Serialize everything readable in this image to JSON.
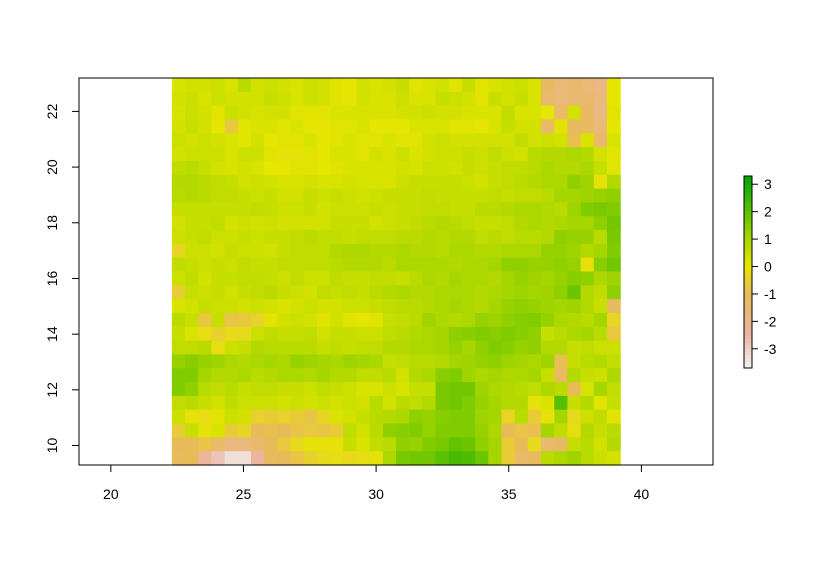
{
  "chart_data": {
    "type": "heatmap",
    "title": "",
    "xlabel": "",
    "ylabel": "",
    "xlim": [
      18.8,
      42.7
    ],
    "ylim": [
      9.3,
      23.2
    ],
    "x_ticks": [
      20,
      25,
      30,
      35,
      40
    ],
    "y_ticks": [
      10,
      12,
      14,
      16,
      18,
      20,
      22
    ],
    "grid": false,
    "raster": {
      "x_min": 22.3,
      "x_max": 39.2,
      "y_min": 9.3,
      "y_max": 23.2,
      "ncols": 34,
      "nrows": 28,
      "row_order": "top-to-bottom",
      "values": [
        [
          0.2,
          0.3,
          0.3,
          0.4,
          0.2,
          0.7,
          0.3,
          0.4,
          0.3,
          0.2,
          0.4,
          0.3,
          0.1,
          0.0,
          0.3,
          0.2,
          0.3,
          0.5,
          0.1,
          0.2,
          0.3,
          0.1,
          0.5,
          0.1,
          0.2,
          0.3,
          0.4,
          0.2,
          -1.2,
          -1.6,
          -1.4,
          -1.6,
          -1.9,
          0.0
        ],
        [
          0.3,
          0.4,
          0.2,
          0.4,
          0.3,
          0.3,
          0.3,
          0.5,
          0.4,
          0.2,
          0.4,
          0.3,
          0.1,
          0.0,
          0.3,
          0.2,
          0.2,
          0.4,
          0.2,
          0.2,
          0.5,
          0.4,
          0.3,
          0.1,
          0.5,
          0.3,
          0.5,
          0.2,
          -1.4,
          -1.6,
          -1.5,
          -1.4,
          -1.7,
          0.0
        ],
        [
          0.2,
          0.4,
          0.3,
          0.1,
          0.4,
          0.3,
          0.2,
          0.3,
          0.3,
          0.1,
          0.1,
          0.1,
          0.2,
          0.2,
          0.2,
          0.2,
          0.2,
          0.3,
          0.3,
          0.4,
          0.3,
          0.3,
          0.2,
          0.2,
          0.2,
          0.6,
          0.2,
          0.2,
          0.0,
          -1.3,
          0.3,
          -1.2,
          -1.9,
          0.1
        ],
        [
          0.3,
          0.5,
          0.3,
          0.0,
          -0.7,
          0.1,
          0.2,
          0.2,
          0.1,
          0.2,
          0.0,
          0.0,
          0.1,
          0.1,
          0.2,
          0.0,
          0.0,
          0.0,
          0.2,
          0.2,
          0.2,
          0.1,
          0.1,
          0.0,
          0.2,
          0.5,
          0.3,
          0.3,
          -1.3,
          0.1,
          -1.1,
          -1.2,
          -1.6,
          0.0
        ],
        [
          0.4,
          0.3,
          0.4,
          0.3,
          0.2,
          0.1,
          0.3,
          0.0,
          0.1,
          0.1,
          0.2,
          0.0,
          0.1,
          0.2,
          0.1,
          0.1,
          0.2,
          0.1,
          0.1,
          0.3,
          0.4,
          0.3,
          0.3,
          0.3,
          0.3,
          0.3,
          0.6,
          0.3,
          0.4,
          0.3,
          -0.9,
          0.2,
          -1.4,
          0.2
        ],
        [
          0.3,
          0.4,
          0.4,
          0.4,
          0.2,
          0.4,
          0.4,
          0.1,
          -0.1,
          -0.1,
          0.1,
          0.0,
          0.2,
          0.2,
          0.1,
          0.3,
          0.2,
          0.4,
          0.2,
          0.3,
          0.4,
          0.4,
          0.5,
          0.4,
          0.6,
          0.4,
          0.3,
          0.7,
          0.8,
          0.8,
          0.9,
          0.8,
          0.3,
          0.1
        ],
        [
          0.6,
          0.7,
          0.5,
          0.3,
          0.2,
          0.3,
          0.2,
          0.0,
          0.0,
          0.1,
          0.1,
          0.0,
          0.1,
          0.2,
          0.2,
          0.2,
          0.2,
          0.3,
          0.2,
          0.4,
          0.4,
          0.3,
          0.5,
          0.4,
          0.5,
          0.6,
          0.6,
          0.7,
          0.9,
          0.8,
          0.8,
          0.9,
          0.5,
          0.1
        ],
        [
          0.8,
          0.8,
          0.7,
          0.6,
          0.5,
          0.3,
          0.4,
          0.3,
          0.2,
          0.2,
          0.3,
          0.2,
          0.2,
          0.3,
          0.2,
          0.2,
          0.2,
          0.4,
          0.5,
          0.5,
          0.5,
          0.5,
          0.4,
          0.3,
          0.5,
          0.6,
          0.7,
          0.8,
          0.9,
          0.9,
          1.3,
          1.1,
          -0.1,
          0.8
        ],
        [
          0.7,
          0.8,
          0.7,
          0.6,
          0.6,
          0.5,
          0.4,
          0.5,
          0.3,
          0.3,
          0.5,
          0.4,
          0.5,
          0.4,
          0.3,
          0.4,
          0.5,
          0.5,
          0.5,
          0.6,
          0.5,
          0.5,
          0.5,
          0.5,
          0.6,
          0.5,
          0.6,
          0.6,
          0.7,
          1.0,
          1.0,
          1.1,
          1.2,
          1.3
        ],
        [
          0.5,
          0.5,
          0.5,
          0.5,
          0.5,
          0.5,
          0.6,
          0.5,
          0.4,
          0.4,
          0.5,
          0.3,
          0.4,
          0.4,
          0.4,
          0.5,
          0.4,
          0.5,
          0.5,
          0.6,
          0.6,
          0.5,
          0.5,
          0.7,
          0.7,
          0.8,
          0.9,
          0.9,
          0.8,
          0.7,
          1.1,
          1.5,
          1.6,
          1.5
        ],
        [
          0.3,
          0.5,
          0.5,
          0.6,
          0.3,
          0.4,
          0.3,
          0.4,
          0.3,
          0.3,
          0.3,
          0.3,
          0.5,
          0.5,
          0.5,
          0.3,
          0.4,
          0.5,
          0.6,
          0.7,
          0.8,
          0.7,
          0.6,
          0.5,
          0.5,
          0.6,
          0.8,
          0.9,
          0.8,
          0.9,
          1.0,
          1.0,
          1.3,
          1.7
        ],
        [
          0.4,
          0.5,
          0.6,
          0.4,
          0.4,
          0.5,
          0.4,
          0.5,
          0.5,
          0.6,
          0.7,
          0.6,
          0.6,
          0.5,
          0.6,
          0.6,
          0.6,
          0.7,
          0.7,
          0.8,
          0.7,
          0.8,
          0.8,
          0.6,
          0.7,
          0.6,
          0.7,
          0.7,
          0.8,
          1.3,
          1.2,
          1.2,
          0.7,
          1.6
        ],
        [
          -0.4,
          0.4,
          0.4,
          0.3,
          0.5,
          0.4,
          0.4,
          0.3,
          0.5,
          0.6,
          0.6,
          0.6,
          0.8,
          0.9,
          0.9,
          0.8,
          0.8,
          0.9,
          0.8,
          0.8,
          0.7,
          0.9,
          0.9,
          0.8,
          0.8,
          0.9,
          0.9,
          0.9,
          1.2,
          1.2,
          1.1,
          0.8,
          1.0,
          1.5
        ],
        [
          0.6,
          0.5,
          0.4,
          0.5,
          0.4,
          0.6,
          0.5,
          0.5,
          0.6,
          0.6,
          0.6,
          0.6,
          0.7,
          0.8,
          0.8,
          0.8,
          0.7,
          0.9,
          0.9,
          0.9,
          0.9,
          0.8,
          0.9,
          0.9,
          1.0,
          1.3,
          1.3,
          1.2,
          1.2,
          1.3,
          1.2,
          -0.1,
          1.4,
          1.7
        ],
        [
          0.4,
          0.6,
          0.3,
          0.5,
          0.5,
          0.6,
          0.6,
          0.5,
          0.4,
          0.6,
          0.4,
          0.4,
          0.6,
          0.5,
          0.5,
          0.6,
          0.6,
          0.5,
          0.7,
          0.9,
          0.8,
          1.0,
          0.9,
          0.9,
          0.8,
          1.0,
          1.2,
          1.1,
          1.0,
          1.2,
          1.4,
          1.3,
          0.9,
          1.1
        ],
        [
          -0.6,
          0.5,
          0.4,
          0.5,
          0.3,
          0.5,
          0.6,
          0.7,
          0.5,
          0.4,
          0.3,
          0.6,
          0.5,
          0.6,
          0.5,
          0.7,
          0.8,
          0.9,
          0.8,
          0.8,
          0.9,
          0.9,
          0.9,
          0.8,
          0.9,
          1.0,
          1.1,
          1.0,
          1.1,
          1.3,
          1.8,
          0.8,
          0.6,
          1.3
        ],
        [
          0.2,
          0.3,
          0.5,
          0.4,
          0.4,
          0.3,
          0.4,
          0.3,
          0.2,
          0.3,
          0.4,
          0.3,
          0.3,
          0.4,
          0.4,
          0.5,
          0.6,
          0.7,
          0.7,
          0.8,
          0.9,
          1.0,
          0.9,
          0.8,
          1.0,
          1.2,
          1.3,
          1.2,
          1.1,
          1.0,
          1.1,
          0.8,
          0.5,
          -1.1
        ],
        [
          0.7,
          0.5,
          -0.7,
          0.5,
          -0.8,
          -0.7,
          -0.5,
          0.1,
          0.3,
          0.4,
          0.3,
          0.1,
          0.3,
          0.1,
          0.0,
          0.1,
          0.5,
          0.6,
          0.7,
          1.1,
          0.9,
          0.8,
          0.9,
          1.2,
          1.1,
          1.3,
          1.4,
          1.5,
          1.2,
          0.9,
          0.8,
          0.7,
          1.0,
          -0.4
        ],
        [
          0.5,
          0.2,
          -0.2,
          -0.5,
          -0.3,
          -0.3,
          0.4,
          0.6,
          0.5,
          0.5,
          0.6,
          0.3,
          0.5,
          0.5,
          0.4,
          0.4,
          0.6,
          0.7,
          0.8,
          0.9,
          1.0,
          1.3,
          1.4,
          1.5,
          1.4,
          1.5,
          1.4,
          1.3,
          0.5,
          0.7,
          0.9,
          1.0,
          0.7,
          -0.7
        ],
        [
          0.6,
          0.6,
          0.7,
          -0.2,
          0.4,
          0.5,
          0.8,
          0.7,
          0.7,
          0.7,
          0.7,
          0.5,
          0.6,
          0.5,
          0.6,
          0.6,
          0.8,
          0.8,
          0.9,
          0.9,
          1.0,
          1.2,
          1.0,
          1.3,
          1.5,
          1.4,
          1.2,
          1.3,
          0.8,
          0.8,
          0.5,
          0.6,
          0.4,
          0.4
        ],
        [
          1.2,
          1.4,
          1.2,
          1.1,
          0.9,
          0.8,
          0.9,
          1.0,
          0.9,
          1.2,
          1.1,
          1.0,
          0.9,
          1.1,
          1.0,
          0.9,
          0.5,
          0.6,
          0.7,
          0.7,
          0.8,
          1.0,
          1.1,
          1.2,
          1.3,
          1.1,
          1.0,
          0.9,
          1.1,
          -0.9,
          0.5,
          0.7,
          0.8,
          0.6
        ],
        [
          1.5,
          1.5,
          1.0,
          0.8,
          0.8,
          0.9,
          0.7,
          0.8,
          0.9,
          0.9,
          0.8,
          1.0,
          0.8,
          0.8,
          0.6,
          0.6,
          0.7,
          0.3,
          0.8,
          0.9,
          1.4,
          1.5,
          1.1,
          0.9,
          1.0,
          0.9,
          0.9,
          1.0,
          0.5,
          -1.1,
          0.8,
          0.5,
          0.4,
          0.9
        ],
        [
          1.5,
          1.3,
          0.7,
          0.6,
          0.7,
          0.5,
          0.6,
          0.6,
          0.5,
          0.5,
          0.4,
          0.6,
          0.5,
          0.4,
          0.2,
          0.2,
          0.4,
          0.2,
          0.5,
          0.5,
          1.6,
          1.7,
          1.7,
          1.1,
          0.9,
          0.8,
          0.7,
          0.6,
          0.9,
          0.7,
          -1.0,
          0.2,
          1.0,
          0.6
        ],
        [
          0.6,
          0.7,
          0.5,
          0.3,
          0.6,
          0.4,
          0.4,
          0.4,
          0.3,
          0.4,
          0.3,
          0.4,
          0.3,
          0.4,
          0.3,
          0.7,
          0.3,
          0.7,
          0.6,
          0.8,
          1.6,
          1.7,
          1.5,
          1.2,
          1.0,
          0.8,
          0.8,
          -0.1,
          0.2,
          2.1,
          0.5,
          0.8,
          0.1,
          0.5
        ],
        [
          0.4,
          -0.1,
          -0.2,
          0.1,
          0.4,
          0.3,
          -0.5,
          -0.6,
          -0.5,
          -0.6,
          -0.8,
          -0.4,
          0.2,
          0.3,
          0.5,
          0.7,
          0.8,
          0.9,
          1.3,
          1.2,
          1.4,
          1.5,
          1.5,
          1.1,
          1.0,
          -0.4,
          0.7,
          -0.6,
          -0.1,
          1.0,
          -0.3,
          0.4,
          0.6,
          0.1
        ],
        [
          -0.6,
          0.5,
          -0.1,
          0.2,
          -0.6,
          -0.4,
          -1.0,
          -0.9,
          -1.0,
          -0.8,
          -0.7,
          -0.8,
          -0.6,
          0.6,
          0.3,
          0.7,
          1.3,
          1.4,
          1.5,
          1.2,
          1.5,
          1.5,
          1.5,
          1.2,
          0.9,
          -1.0,
          -0.8,
          -0.9,
          1.0,
          0.6,
          -0.2,
          0.8,
          0.5,
          0.7
        ],
        [
          -1.0,
          -1.0,
          -0.8,
          -1.3,
          -1.7,
          -1.7,
          -1.4,
          -1.0,
          -0.7,
          -0.3,
          -0.1,
          -0.1,
          -0.1,
          0.5,
          0.2,
          0.6,
          0.7,
          1.3,
          1.2,
          1.5,
          1.6,
          1.9,
          1.8,
          1.3,
          1.0,
          -0.6,
          -1.0,
          -0.3,
          -1.4,
          -1.2,
          0.5,
          0.7,
          0.3,
          0.8
        ],
        [
          -1.1,
          -1.0,
          -2.3,
          -2.8,
          -3.3,
          -3.3,
          -2.4,
          -1.1,
          -1.0,
          -0.8,
          -0.5,
          -0.3,
          -0.2,
          -0.3,
          -0.2,
          -0.1,
          0.9,
          1.6,
          1.7,
          1.7,
          2.0,
          2.3,
          2.2,
          1.8,
          1.0,
          -0.6,
          -1.3,
          -1.1,
          0.7,
          0.9,
          1.1,
          0.7,
          0.4,
          0.3
        ]
      ]
    },
    "legend": {
      "placement": "right",
      "min": -3.7,
      "max": 3.3,
      "ticks": [
        3,
        2,
        1,
        0,
        -1,
        -2,
        -3
      ],
      "tick_labels": [
        "3",
        "2",
        "1",
        "0",
        "-1",
        "-2",
        "-3"
      ],
      "color_stops": [
        {
          "value": -3.7,
          "color": "#F2F2F2"
        },
        {
          "value": -2.5,
          "color": "#EBB5A3"
        },
        {
          "value": -1.0,
          "color": "#E8BB59"
        },
        {
          "value": 0.0,
          "color": "#E6E600"
        },
        {
          "value": 1.0,
          "color": "#A6D600"
        },
        {
          "value": 2.0,
          "color": "#5CC100"
        },
        {
          "value": 3.3,
          "color": "#00A600"
        }
      ]
    }
  }
}
